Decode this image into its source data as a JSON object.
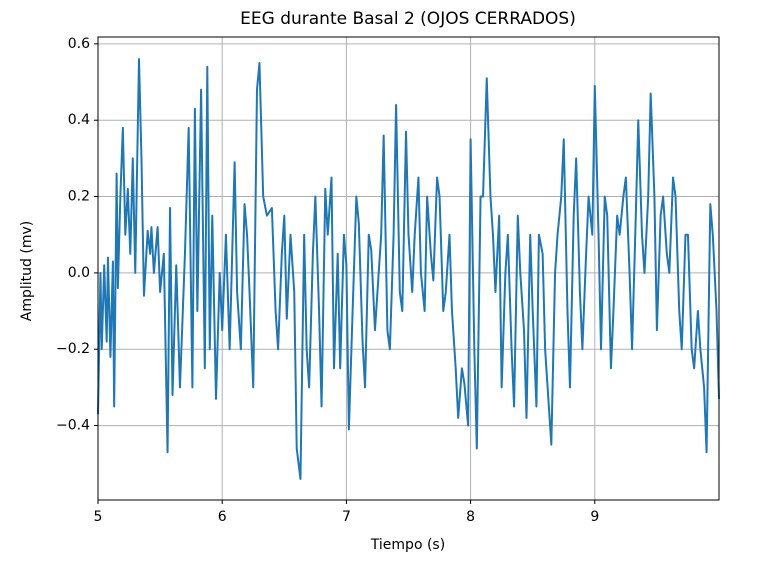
{
  "chart_data": {
    "type": "line",
    "title": "EEG durante Basal 2 (OJOS CERRADOS)",
    "x_label": "Tiempo (s)",
    "y_label": "Amplitud (mv)",
    "xlim": [
      5,
      10
    ],
    "ylim": [
      -0.595,
      0.618
    ],
    "xticks": [
      5,
      6,
      7,
      8,
      9
    ],
    "yticks": [
      {
        "value": -0.4,
        "label": "−0.4"
      },
      {
        "value": -0.2,
        "label": "−0.2"
      },
      {
        "value": 0,
        "label": "0.0"
      },
      0.2,
      0.4,
      0.6
    ],
    "grid": true,
    "series": [
      {
        "name": "EEG",
        "color": "#1f77b4",
        "x": [
          5.0,
          5.02,
          5.03,
          5.05,
          5.07,
          5.08,
          5.1,
          5.12,
          5.13,
          5.15,
          5.16,
          5.18,
          5.2,
          5.22,
          5.24,
          5.26,
          5.28,
          5.3,
          5.33,
          5.35,
          5.37,
          5.4,
          5.42,
          5.43,
          5.45,
          5.48,
          5.5,
          5.53,
          5.56,
          5.58,
          5.6,
          5.63,
          5.66,
          5.7,
          5.73,
          5.76,
          5.78,
          5.8,
          5.83,
          5.86,
          5.88,
          5.9,
          5.92,
          5.95,
          5.98,
          6.0,
          6.03,
          6.06,
          6.1,
          6.12,
          6.15,
          6.18,
          6.2,
          6.22,
          6.25,
          6.28,
          6.3,
          6.33,
          6.36,
          6.4,
          6.43,
          6.45,
          6.48,
          6.5,
          6.52,
          6.55,
          6.58,
          6.6,
          6.63,
          6.66,
          6.68,
          6.7,
          6.73,
          6.75,
          6.78,
          6.8,
          6.83,
          6.85,
          6.88,
          6.9,
          6.93,
          6.95,
          6.98,
          7.0,
          7.02,
          7.05,
          7.08,
          7.1,
          7.13,
          7.15,
          7.18,
          7.2,
          7.23,
          7.25,
          7.28,
          7.3,
          7.33,
          7.35,
          7.38,
          7.4,
          7.43,
          7.45,
          7.48,
          7.5,
          7.53,
          7.55,
          7.58,
          7.6,
          7.63,
          7.65,
          7.68,
          7.7,
          7.73,
          7.75,
          7.78,
          7.8,
          7.83,
          7.85,
          7.88,
          7.9,
          7.93,
          7.95,
          7.98,
          8.0,
          8.03,
          8.05,
          8.08,
          8.1,
          8.13,
          8.16,
          8.18,
          8.2,
          8.23,
          8.25,
          8.28,
          8.3,
          8.33,
          8.35,
          8.38,
          8.4,
          8.43,
          8.45,
          8.48,
          8.5,
          8.53,
          8.55,
          8.58,
          8.6,
          8.63,
          8.65,
          8.68,
          8.7,
          8.73,
          8.75,
          8.78,
          8.8,
          8.83,
          8.85,
          8.88,
          8.9,
          8.93,
          8.95,
          8.98,
          9.0,
          9.03,
          9.05,
          9.08,
          9.1,
          9.13,
          9.15,
          9.18,
          9.2,
          9.23,
          9.25,
          9.28,
          9.3,
          9.33,
          9.35,
          9.38,
          9.4,
          9.43,
          9.45,
          9.48,
          9.5,
          9.53,
          9.55,
          9.58,
          9.6,
          9.63,
          9.65,
          9.68,
          9.7,
          9.73,
          9.75,
          9.78,
          9.8,
          9.83,
          9.85,
          9.88,
          9.9,
          9.93,
          9.95,
          9.98,
          10.0
        ],
        "values": [
          -0.37,
          0.0,
          -0.2,
          0.02,
          -0.18,
          0.04,
          -0.22,
          0.03,
          -0.35,
          0.26,
          -0.04,
          0.2,
          0.38,
          0.1,
          0.22,
          0.05,
          0.3,
          0.0,
          0.56,
          0.3,
          -0.06,
          0.11,
          0.05,
          0.12,
          0.0,
          0.12,
          -0.05,
          0.05,
          -0.47,
          0.17,
          -0.32,
          0.02,
          -0.3,
          0.05,
          0.38,
          -0.3,
          0.43,
          -0.1,
          0.48,
          -0.25,
          0.54,
          -0.2,
          0.15,
          -0.33,
          0.0,
          -0.15,
          0.1,
          -0.2,
          0.29,
          -0.05,
          -0.2,
          0.18,
          0.1,
          -0.05,
          -0.3,
          0.48,
          0.55,
          0.2,
          0.15,
          0.17,
          -0.1,
          -0.2,
          0.05,
          0.15,
          -0.12,
          0.1,
          -0.05,
          -0.46,
          -0.54,
          0.1,
          -0.2,
          -0.3,
          0.05,
          0.2,
          -0.1,
          -0.35,
          0.22,
          0.1,
          0.25,
          -0.25,
          0.05,
          -0.25,
          0.1,
          0.02,
          -0.41,
          -0.1,
          0.2,
          0.13,
          -0.18,
          -0.3,
          0.1,
          0.06,
          -0.15,
          -0.05,
          0.1,
          0.36,
          -0.15,
          -0.2,
          0.1,
          0.44,
          -0.05,
          -0.1,
          0.37,
          0.1,
          -0.05,
          0.1,
          0.25,
          0.0,
          -0.1,
          0.2,
          0.05,
          -0.02,
          0.25,
          0.2,
          -0.1,
          -0.05,
          0.1,
          -0.1,
          -0.25,
          -0.38,
          -0.25,
          -0.29,
          -0.4,
          0.35,
          -0.2,
          -0.46,
          0.2,
          0.2,
          0.51,
          0.2,
          0.1,
          -0.05,
          0.15,
          -0.3,
          0.0,
          0.1,
          -0.2,
          -0.35,
          0.15,
          0.0,
          -0.15,
          -0.38,
          0.1,
          -0.1,
          -0.35,
          0.1,
          0.05,
          -0.2,
          -0.35,
          -0.45,
          0.0,
          0.1,
          0.2,
          0.35,
          -0.1,
          -0.3,
          0.15,
          0.3,
          -0.05,
          -0.2,
          0.05,
          0.2,
          0.1,
          0.49,
          0.1,
          -0.2,
          0.2,
          0.15,
          -0.25,
          -0.1,
          0.15,
          0.1,
          0.2,
          0.25,
          0.0,
          -0.2,
          0.15,
          0.4,
          0.1,
          0.0,
          0.2,
          0.47,
          0.2,
          -0.15,
          0.15,
          0.2,
          0.05,
          0.0,
          0.25,
          0.2,
          -0.1,
          -0.2,
          0.1,
          0.1,
          -0.2,
          -0.25,
          -0.1,
          -0.2,
          -0.3,
          -0.47,
          0.18,
          0.1,
          -0.1,
          -0.33
        ]
      }
    ]
  }
}
